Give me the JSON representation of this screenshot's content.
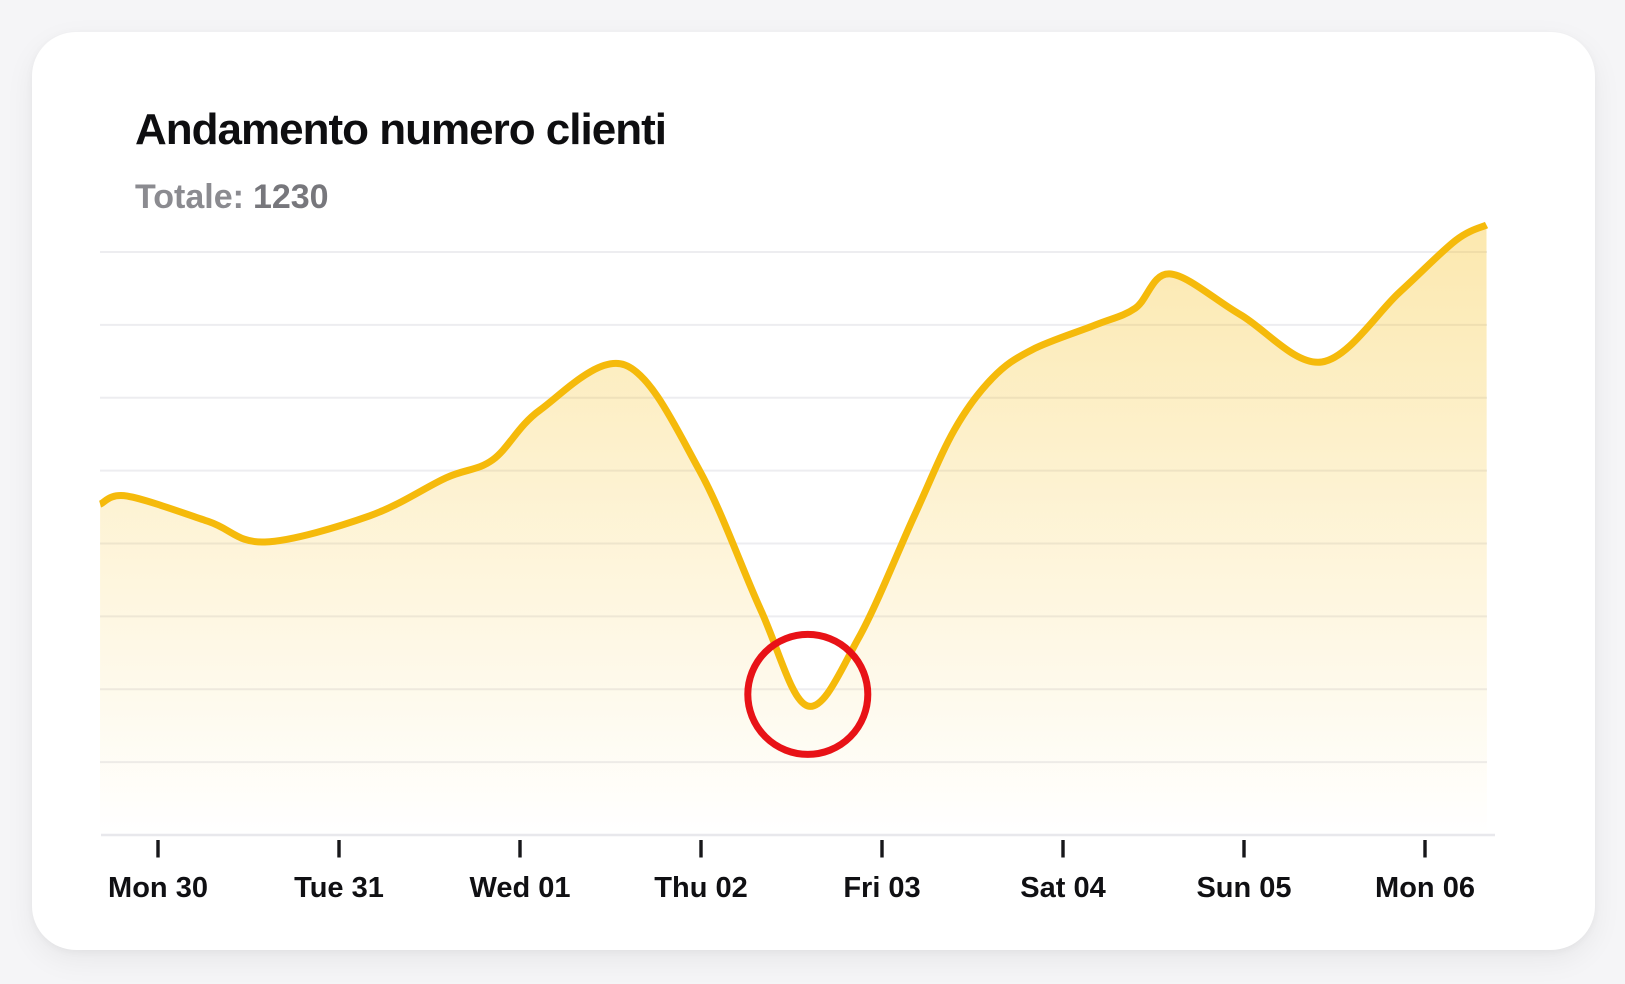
{
  "page": {
    "background_color": "#f5f5f7",
    "card_color": "#ffffff"
  },
  "card": {
    "title": "Andamento numero clienti",
    "subtitle": {
      "label": "Totale:",
      "value": "1230"
    }
  },
  "chart_data": {
    "type": "area",
    "title": "Andamento numero clienti",
    "total": 1230,
    "legend": "none",
    "grid": "horizontal-only",
    "x": {
      "unit": "day",
      "tick_labels": [
        "Mon 30",
        "Tue 31",
        "Wed 01",
        "Thu 02",
        "Fri 03",
        "Sat 04",
        "Sun 05",
        "Mon 06"
      ]
    },
    "y": {
      "axis_labels_visible": false,
      "gridline_count": 8,
      "ylim_gridline_units": [
        0,
        8.5
      ]
    },
    "series": [
      {
        "name": "Numero clienti",
        "color": "#f5ba0b",
        "points": [
          {
            "x": -0.32,
            "y": 4.54
          },
          {
            "x": -0.17,
            "y": 4.65
          },
          {
            "x": 0.28,
            "y": 4.3
          },
          {
            "x": 0.59,
            "y": 4.02
          },
          {
            "x": 1.17,
            "y": 4.38
          },
          {
            "x": 1.59,
            "y": 4.9
          },
          {
            "x": 1.85,
            "y": 5.15
          },
          {
            "x": 2.11,
            "y": 5.83
          },
          {
            "x": 2.58,
            "y": 6.45
          },
          {
            "x": 2.99,
            "y": 5.01
          },
          {
            "x": 3.33,
            "y": 3.09
          },
          {
            "x": 3.59,
            "y": 1.77
          },
          {
            "x": 3.87,
            "y": 2.7
          },
          {
            "x": 4.18,
            "y": 4.39
          },
          {
            "x": 4.4,
            "y": 5.56
          },
          {
            "x": 4.61,
            "y": 6.27
          },
          {
            "x": 4.83,
            "y": 6.66
          },
          {
            "x": 5.18,
            "y": 7.0
          },
          {
            "x": 5.4,
            "y": 7.23
          },
          {
            "x": 5.59,
            "y": 7.7
          },
          {
            "x": 5.98,
            "y": 7.14
          },
          {
            "x": 6.43,
            "y": 6.49
          },
          {
            "x": 6.86,
            "y": 7.45
          },
          {
            "x": 7.17,
            "y": 8.16
          },
          {
            "x": 7.34,
            "y": 8.37
          }
        ]
      }
    ],
    "annotations": [
      {
        "type": "circle",
        "purpose": "highlights lowest dip of the curve",
        "x": 3.59,
        "y": 1.93,
        "radius_px": 60,
        "color": "#e81217",
        "stroke_px": 7
      }
    ],
    "colors": {
      "line": "#f5ba0b",
      "fill_top": "rgba(245,186,11,0.33)",
      "fill_bottom": "rgba(245,186,11,0)",
      "gridline": "#ededf0",
      "axis_line": "#e8e8ec",
      "tick": "#17171a",
      "tick_label": "#101013"
    }
  }
}
